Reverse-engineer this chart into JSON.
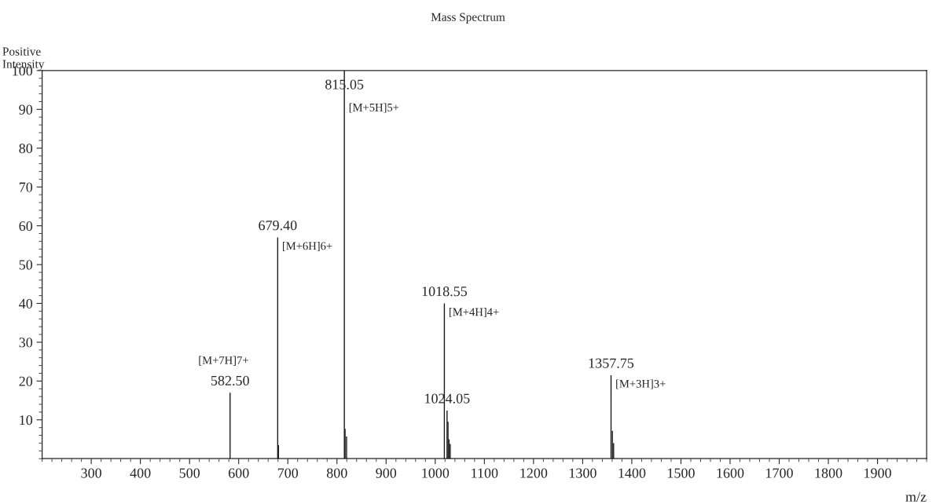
{
  "chart_data": {
    "type": "bar",
    "title": "Mass Spectrum",
    "xlabel": "m/z",
    "ylabel": "Positive\nIntensity",
    "x": [
      582.5,
      679.4,
      681,
      815.05,
      816.5,
      819.5,
      1018.55,
      1024.05,
      1026,
      1028,
      1030.5,
      1357.75,
      1360.5,
      1363
    ],
    "values": [
      17,
      57,
      3.5,
      100,
      7.7,
      5.7,
      40,
      12.4,
      9.5,
      5,
      3.8,
      21.5,
      7.2,
      4
    ],
    "color": "#1a1a1a",
    "xlim": [
      200,
      2000
    ],
    "xticks": [
      300,
      400,
      500,
      600,
      700,
      800,
      900,
      1000,
      1100,
      1200,
      1300,
      1400,
      1500,
      1600,
      1700,
      1800,
      1900
    ],
    "ylim": [
      0,
      100
    ],
    "yticks": [
      10,
      20,
      30,
      40,
      50,
      60,
      70,
      80,
      90,
      100
    ],
    "grid": false,
    "annotations": [
      {
        "text": "815.05",
        "x": 815.05,
        "y": 100
      },
      {
        "text": "[M+5H]5+",
        "x": 815.05,
        "y": 100
      },
      {
        "text": "679.40",
        "x": 679.4,
        "y": 57
      },
      {
        "text": "[M+6H]6+",
        "x": 679.4,
        "y": 57
      },
      {
        "text": "582.50",
        "x": 582.5,
        "y": 17
      },
      {
        "text": "[M+7H]7+",
        "x": 582.5,
        "y": 17
      },
      {
        "text": "1018.55",
        "x": 1018.55,
        "y": 40
      },
      {
        "text": "[M+4H]4+",
        "x": 1018.55,
        "y": 40
      },
      {
        "text": "1024.05",
        "x": 1024.05,
        "y": 12.4
      },
      {
        "text": "1357.75",
        "x": 1357.75,
        "y": 21.5
      },
      {
        "text": "[M+3H]3+",
        "x": 1357.75,
        "y": 21.5
      }
    ]
  }
}
